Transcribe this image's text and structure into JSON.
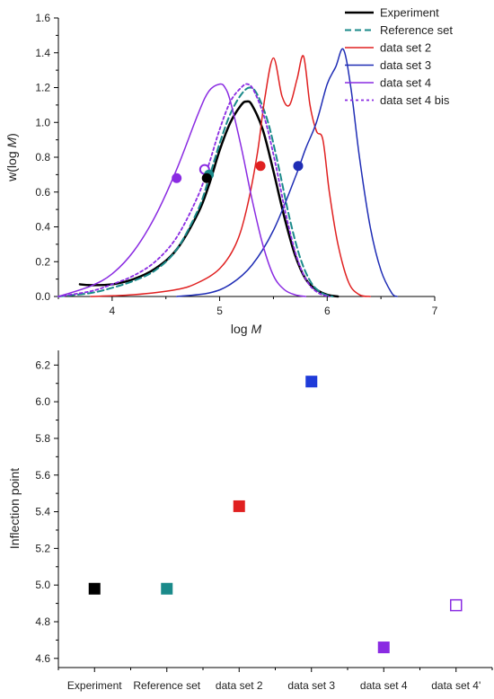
{
  "chart_data": [
    {
      "type": "line",
      "xlabel_prefix": "log ",
      "xlabel_var": "M",
      "ylabel_prefix": "w(log ",
      "ylabel_var": "M",
      "ylabel_suffix": ")",
      "xlim": [
        3.5,
        7
      ],
      "ylim": [
        0,
        1.6
      ],
      "xticks": [
        4,
        5,
        6,
        7
      ],
      "yticks": [
        0.0,
        0.2,
        0.4,
        0.6,
        0.8,
        1.0,
        1.2,
        1.4,
        1.6
      ],
      "legend_position": "top-right",
      "series": [
        {
          "name": "Experiment",
          "color": "#000000",
          "dash": "solid",
          "width": 2.5,
          "x": [
            3.7,
            3.8,
            4.0,
            4.2,
            4.4,
            4.6,
            4.8,
            4.9,
            5.0,
            5.1,
            5.2,
            5.25,
            5.3,
            5.4,
            5.5,
            5.6,
            5.7,
            5.8,
            5.9,
            6.0,
            6.1
          ],
          "y": [
            0.07,
            0.065,
            0.07,
            0.1,
            0.16,
            0.27,
            0.48,
            0.64,
            0.84,
            1.0,
            1.1,
            1.12,
            1.1,
            0.96,
            0.72,
            0.46,
            0.24,
            0.1,
            0.04,
            0.01,
            0.0
          ]
        },
        {
          "name": "Reference set",
          "color": "#1a8a8a",
          "dash": "dashed",
          "width": 2,
          "x": [
            3.5,
            3.8,
            4.0,
            4.2,
            4.4,
            4.6,
            4.8,
            4.9,
            5.0,
            5.1,
            5.2,
            5.28,
            5.35,
            5.45,
            5.55,
            5.65,
            5.75,
            5.85,
            5.95,
            6.05
          ],
          "y": [
            0.0,
            0.02,
            0.05,
            0.09,
            0.15,
            0.27,
            0.5,
            0.68,
            0.88,
            1.05,
            1.16,
            1.2,
            1.16,
            1.0,
            0.74,
            0.45,
            0.22,
            0.08,
            0.02,
            0.0
          ]
        },
        {
          "name": "data set 2",
          "color": "#e02020",
          "dash": "solid",
          "width": 1.5,
          "x": [
            3.8,
            4.2,
            4.6,
            4.8,
            5.0,
            5.15,
            5.25,
            5.35,
            5.42,
            5.5,
            5.58,
            5.65,
            5.72,
            5.78,
            5.84,
            5.9,
            5.96,
            6.02,
            6.1,
            6.2,
            6.3,
            6.4
          ],
          "y": [
            0.0,
            0.01,
            0.04,
            0.08,
            0.16,
            0.3,
            0.5,
            0.82,
            1.14,
            1.37,
            1.15,
            1.1,
            1.25,
            1.38,
            1.1,
            0.95,
            0.9,
            0.6,
            0.3,
            0.08,
            0.01,
            0.0
          ]
        },
        {
          "name": "data set 3",
          "color": "#1f2db5",
          "dash": "solid",
          "width": 1.5,
          "x": [
            4.6,
            4.9,
            5.1,
            5.3,
            5.5,
            5.7,
            5.8,
            5.9,
            6.0,
            6.08,
            6.15,
            6.22,
            6.3,
            6.4,
            6.5,
            6.6,
            6.65
          ],
          "y": [
            0.0,
            0.02,
            0.07,
            0.18,
            0.38,
            0.68,
            0.85,
            1.0,
            1.22,
            1.32,
            1.42,
            1.2,
            0.8,
            0.4,
            0.15,
            0.02,
            0.0
          ]
        },
        {
          "name": "data set 4",
          "color": "#8a2be2",
          "dash": "solid",
          "width": 1.5,
          "x": [
            3.5,
            3.8,
            4.0,
            4.2,
            4.4,
            4.6,
            4.8,
            4.9,
            5.0,
            5.05,
            5.1,
            5.2,
            5.3,
            5.4,
            5.5,
            5.6,
            5.7,
            5.8
          ],
          "y": [
            0.0,
            0.06,
            0.13,
            0.26,
            0.46,
            0.73,
            1.05,
            1.18,
            1.22,
            1.2,
            1.12,
            0.86,
            0.56,
            0.3,
            0.12,
            0.04,
            0.01,
            0.0
          ]
        },
        {
          "name": "data set 4 bis",
          "color": "#8a2be2",
          "dash": "dotted",
          "width": 1.8,
          "x": [
            3.5,
            3.8,
            4.0,
            4.2,
            4.4,
            4.6,
            4.8,
            4.9,
            5.0,
            5.1,
            5.2,
            5.26,
            5.32,
            5.42,
            5.52,
            5.62,
            5.72,
            5.82,
            5.92,
            6.02
          ],
          "y": [
            0.0,
            0.03,
            0.07,
            0.12,
            0.2,
            0.34,
            0.58,
            0.76,
            0.96,
            1.12,
            1.2,
            1.22,
            1.18,
            1.02,
            0.76,
            0.46,
            0.22,
            0.08,
            0.02,
            0.0
          ]
        }
      ],
      "markers": [
        {
          "x": 4.6,
          "y": 0.68,
          "color": "#8a2be2",
          "filled": true
        },
        {
          "x": 4.86,
          "y": 0.73,
          "color": "#8a2be2",
          "filled": false
        },
        {
          "x": 4.9,
          "y": 0.7,
          "color": "#1a8a8a",
          "filled": true
        },
        {
          "x": 4.88,
          "y": 0.68,
          "color": "#000000",
          "filled": true
        },
        {
          "x": 5.38,
          "y": 0.75,
          "color": "#e02020",
          "filled": true
        },
        {
          "x": 5.73,
          "y": 0.75,
          "color": "#1f2db5",
          "filled": true
        }
      ]
    },
    {
      "type": "scatter",
      "ylabel": "Inflection point",
      "ylim": [
        4.55,
        6.28
      ],
      "yticks": [
        4.6,
        4.8,
        5.0,
        5.2,
        5.4,
        5.6,
        5.8,
        6.0,
        6.2
      ],
      "categories": [
        "Experiment",
        "Reference set",
        "data set 2",
        "data set 3",
        "data set 4",
        "data set 4'"
      ],
      "values": [
        4.98,
        4.98,
        5.43,
        6.11,
        4.66,
        4.89
      ],
      "colors": [
        "#000000",
        "#1a8a8a",
        "#e02020",
        "#1f3bd9",
        "#8a2be2",
        "#8a2be2"
      ],
      "filled": [
        true,
        true,
        true,
        true,
        true,
        false
      ]
    }
  ]
}
